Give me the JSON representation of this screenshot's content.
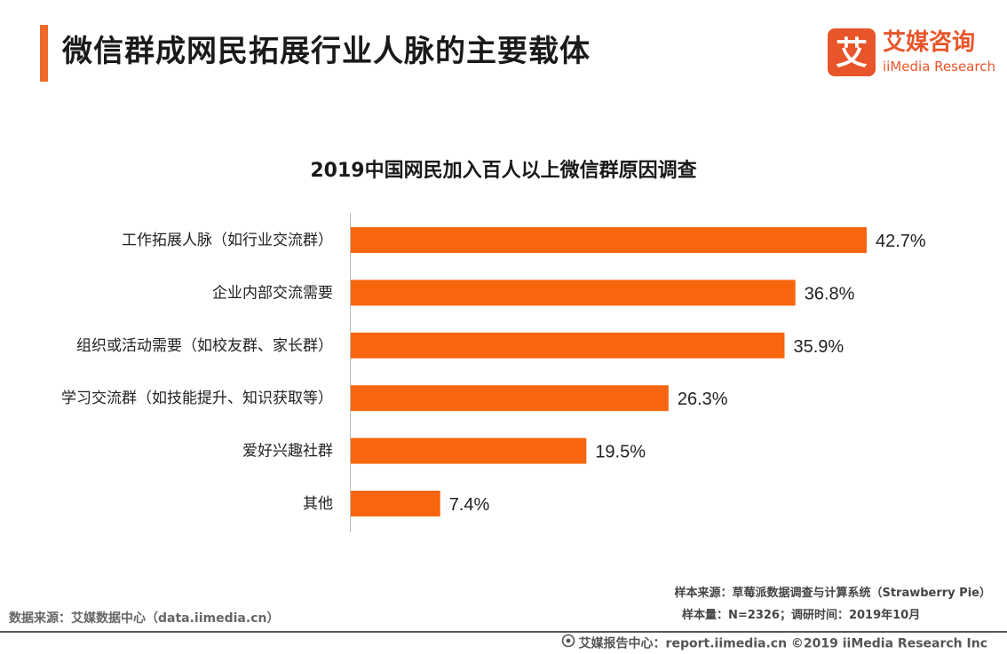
{
  "header": {
    "title": "微信群成网民拓展行业人脉的主要载体"
  },
  "logo": {
    "glyph": "艾",
    "name_cn": "艾媒咨询",
    "name_en": "iiMedia Research",
    "color": "#e8552a"
  },
  "chart_data": {
    "type": "bar",
    "orientation": "horizontal",
    "title": "2019中国网民加入百人以上微信群原因调查",
    "categories": [
      "工作拓展人脉（如行业交流群）",
      "企业内部交流需要",
      "组织或活动需要（如校友群、家长群）",
      "学习交流群（如技能提升、知识获取等）",
      "爱好兴趣社群",
      "其他"
    ],
    "values": [
      42.7,
      36.8,
      35.9,
      26.3,
      19.5,
      7.4
    ],
    "value_labels": [
      "42.7%",
      "36.8%",
      "35.9%",
      "26.3%",
      "19.5%",
      "7.4%"
    ],
    "unit": "%",
    "xlim": [
      0,
      42.7
    ],
    "bar_color": "#f8650f",
    "grid": false,
    "legend": "none"
  },
  "notes": {
    "sample_source": "样本来源：草莓派数据调查与计算系统（Strawberry Pie）",
    "sample_size": "样本量：N=2326；调研时间：2019年10月",
    "data_source": "数据来源：艾媒数据中心（data.iimedia.cn）"
  },
  "footer": {
    "icon": "iimedia-report-icon",
    "text": "艾媒报告中心：report.iimedia.cn ©2019  iiMedia Research  Inc"
  }
}
